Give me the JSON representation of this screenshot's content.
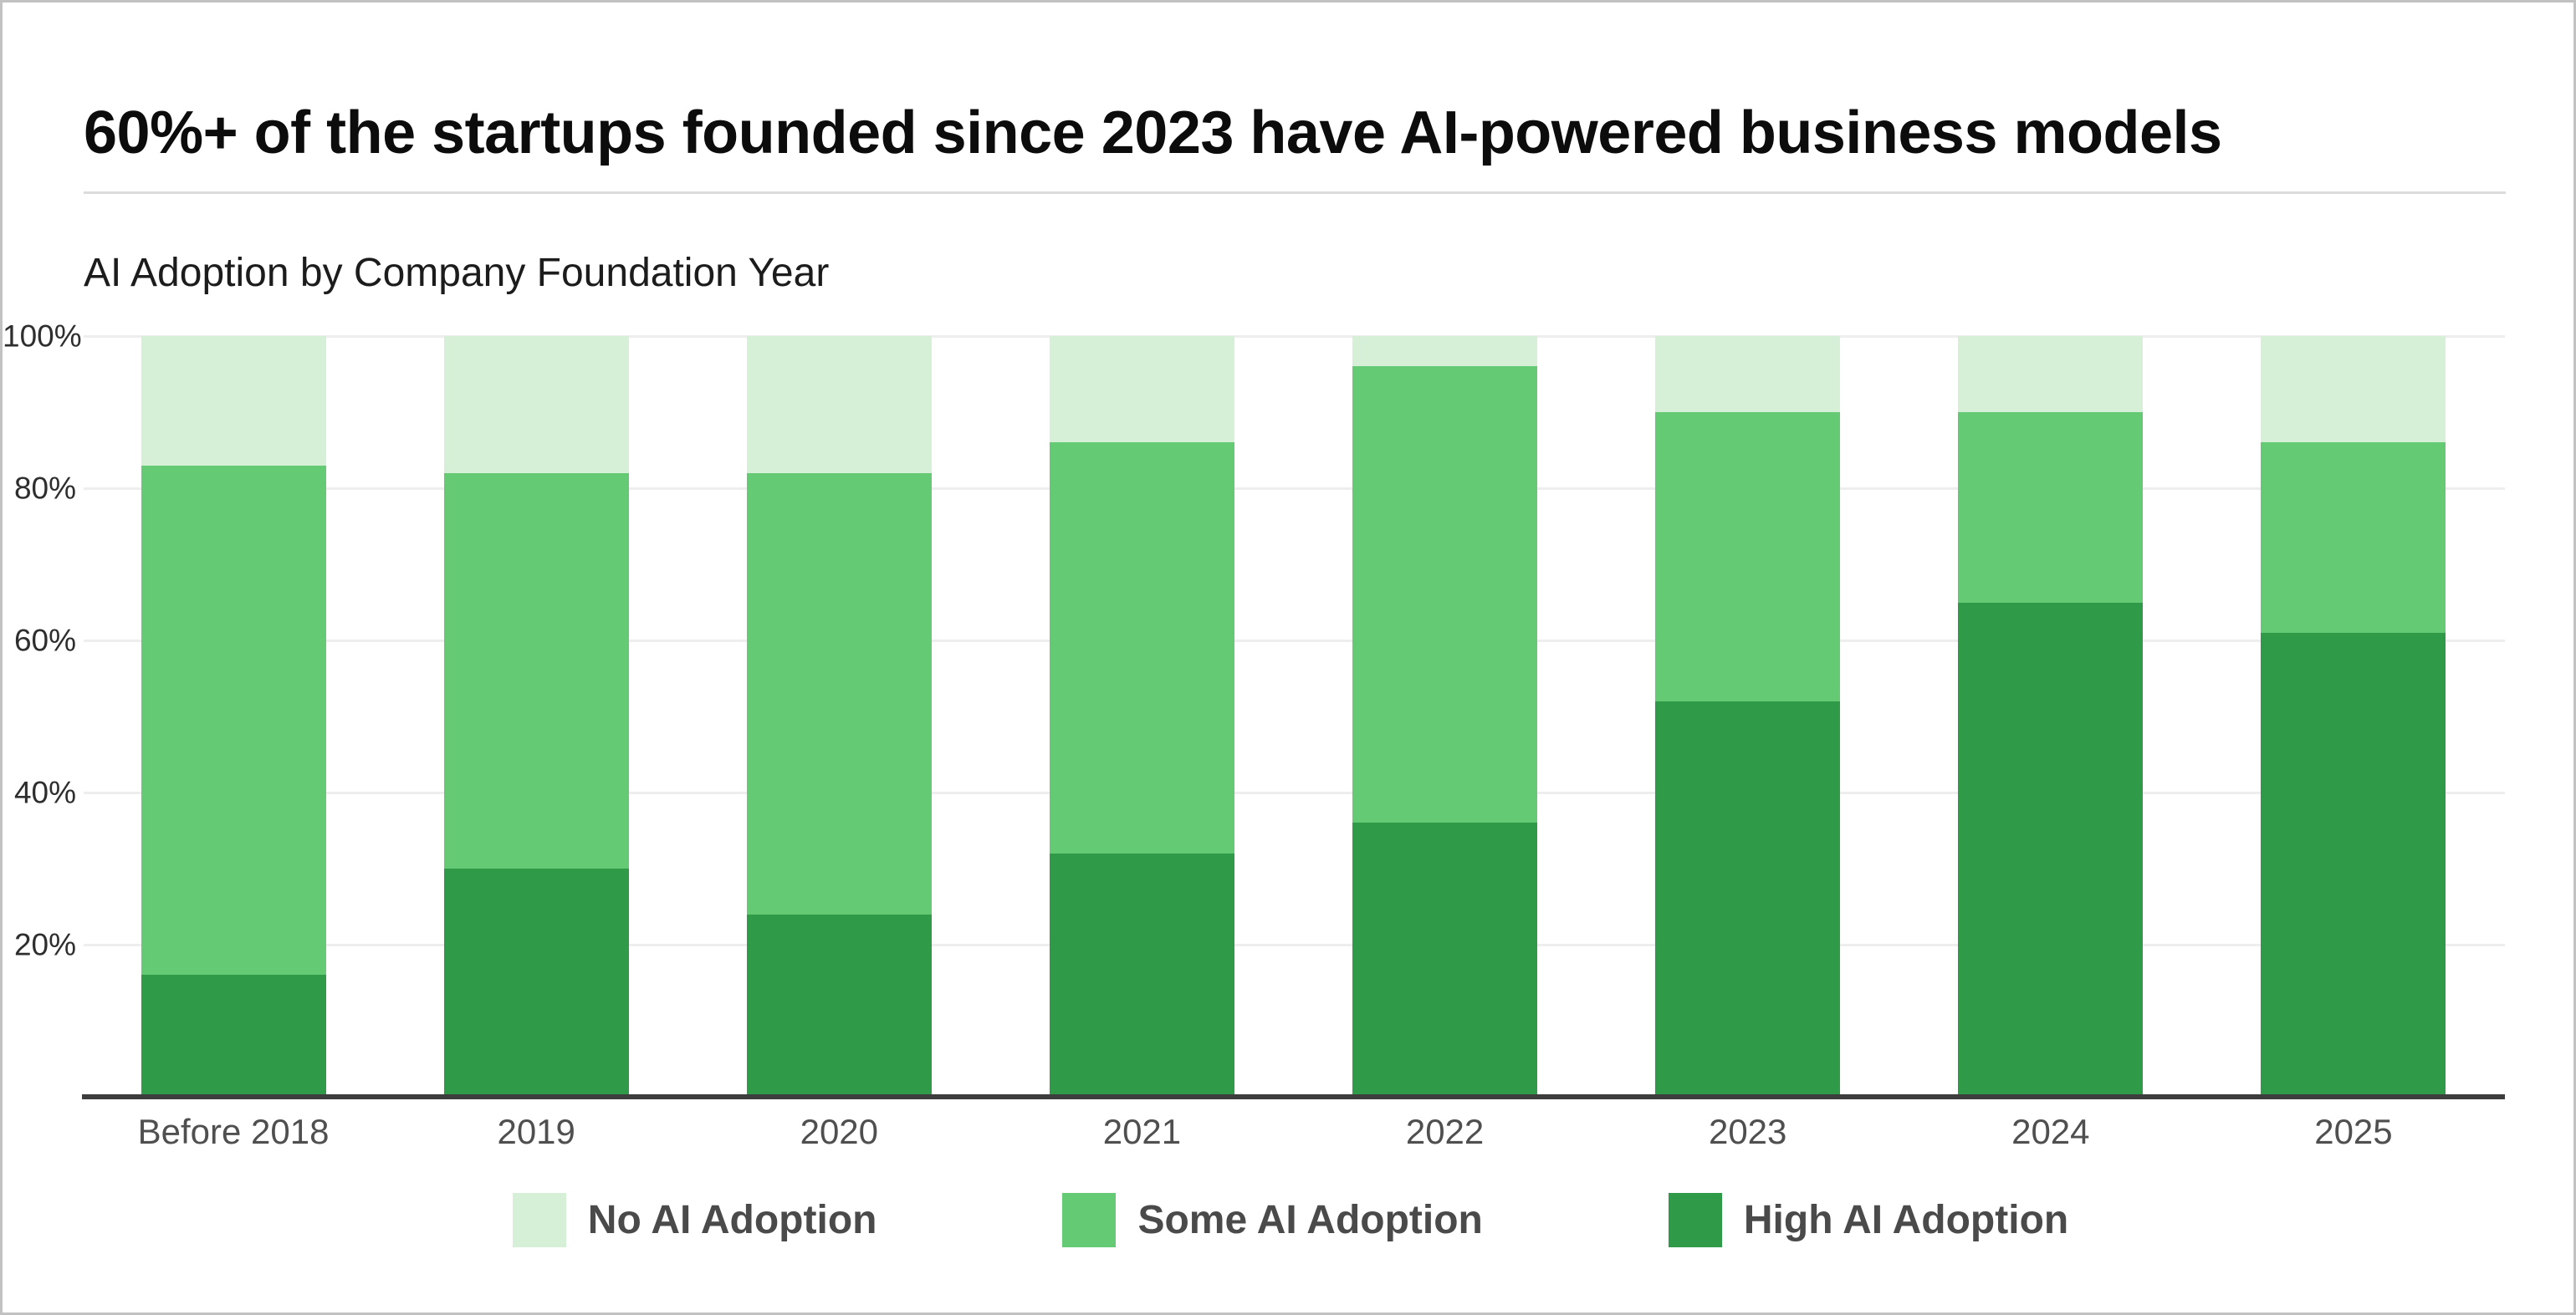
{
  "page": {
    "title": "60%+ of the startups founded since 2023 have AI-powered business models",
    "subtitle": "AI Adoption by Company Foundation Year"
  },
  "colors": {
    "no_ai": "#d5f0d6",
    "some_ai": "#64ca74",
    "high_ai": "#2f9a47",
    "axis_line": "#3d3d3d",
    "gridline": "#eeeeee",
    "title_text": "#0c0c0c",
    "x_label_text": "#4f4f4f",
    "legend_text": "#4a4a4a"
  },
  "chart_data": {
    "type": "bar",
    "stacked": true,
    "title": "AI Adoption by Company Foundation Year",
    "categories": [
      "Before 2018",
      "2019",
      "2020",
      "2021",
      "2022",
      "2023",
      "2024",
      "2025"
    ],
    "series": [
      {
        "name": "High AI Adoption",
        "color": "#2f9a47",
        "values": [
          16,
          30,
          24,
          32,
          36,
          52,
          65,
          61
        ]
      },
      {
        "name": "Some AI Adoption",
        "color": "#64ca74",
        "values": [
          67,
          52,
          58,
          54,
          60,
          38,
          25,
          25
        ]
      },
      {
        "name": "No AI Adoption",
        "color": "#d5f0d6",
        "values": [
          17,
          18,
          18,
          14,
          4,
          10,
          10,
          14
        ]
      }
    ],
    "stack_order_bottom_to_top": [
      "High AI Adoption",
      "Some AI Adoption",
      "No AI Adoption"
    ],
    "xlabel": "",
    "ylabel": "",
    "unit": "%",
    "ylim": [
      0,
      100
    ],
    "y_axis": {
      "tick_labels": [
        "100%",
        "80%",
        "60%",
        "40%",
        "20%"
      ],
      "tick_values": [
        100,
        80,
        60,
        40,
        20
      ]
    },
    "grid": "horizontal",
    "legend_position": "bottom"
  },
  "legend": {
    "items": [
      {
        "label": "No AI Adoption",
        "color": "#d5f0d6"
      },
      {
        "label": "Some AI Adoption",
        "color": "#64ca74"
      },
      {
        "label": "High AI Adoption",
        "color": "#2f9a47"
      }
    ]
  }
}
